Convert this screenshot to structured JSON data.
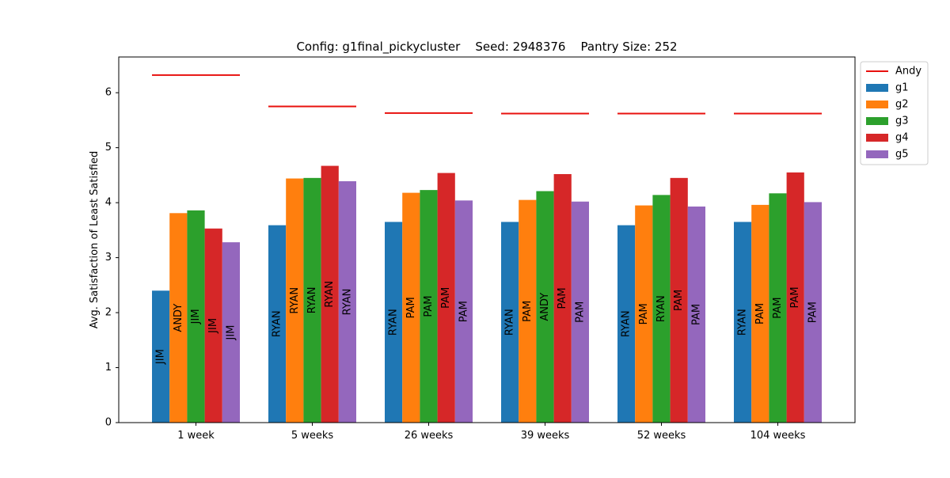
{
  "chart_data": {
    "type": "bar",
    "title": "Config: g1final_pickycluster    Seed: 2948376    Pantry Size: 252",
    "xlabel": "",
    "ylabel": "Avg. Satisfaction of Least Satisfied",
    "ylim": [
      0,
      6.65
    ],
    "yticks": [
      0,
      1,
      2,
      3,
      4,
      5,
      6
    ],
    "grid": false,
    "legend_position": "outside-top-right",
    "categories": [
      "1 week",
      "5 weeks",
      "26 weeks",
      "39 weeks",
      "52 weeks",
      "104 weeks"
    ],
    "series": [
      {
        "name": "g1",
        "color": "#1f77b4",
        "values": [
          2.4,
          3.59,
          3.65,
          3.65,
          3.59,
          3.65
        ],
        "labels": [
          "JIM",
          "RYAN",
          "RYAN",
          "RYAN",
          "RYAN",
          "RYAN"
        ]
      },
      {
        "name": "g2",
        "color": "#ff7f0e",
        "values": [
          3.81,
          4.44,
          4.18,
          4.05,
          3.95,
          3.96
        ],
        "labels": [
          "ANDY",
          "RYAN",
          "PAM",
          "PAM",
          "PAM",
          "PAM"
        ]
      },
      {
        "name": "g3",
        "color": "#2ca02c",
        "values": [
          3.86,
          4.45,
          4.23,
          4.21,
          4.14,
          4.17
        ],
        "labels": [
          "JIM",
          "RYAN",
          "PAM",
          "ANDY",
          "RYAN",
          "PAM"
        ]
      },
      {
        "name": "g4",
        "color": "#d62728",
        "values": [
          3.53,
          4.67,
          4.54,
          4.52,
          4.45,
          4.55
        ],
        "labels": [
          "JIM",
          "RYAN",
          "PAM",
          "PAM",
          "PAM",
          "PAM"
        ]
      },
      {
        "name": "g5",
        "color": "#9467bd",
        "values": [
          3.28,
          4.39,
          4.04,
          4.02,
          3.93,
          4.01
        ],
        "labels": [
          "JIM",
          "RYAN",
          "PAM",
          "PAM",
          "PAM",
          "PAM"
        ]
      }
    ],
    "reference_line": {
      "name": "Andy",
      "color": "#e8100e",
      "values": [
        6.32,
        5.75,
        5.63,
        5.62,
        5.62,
        5.62
      ]
    }
  }
}
